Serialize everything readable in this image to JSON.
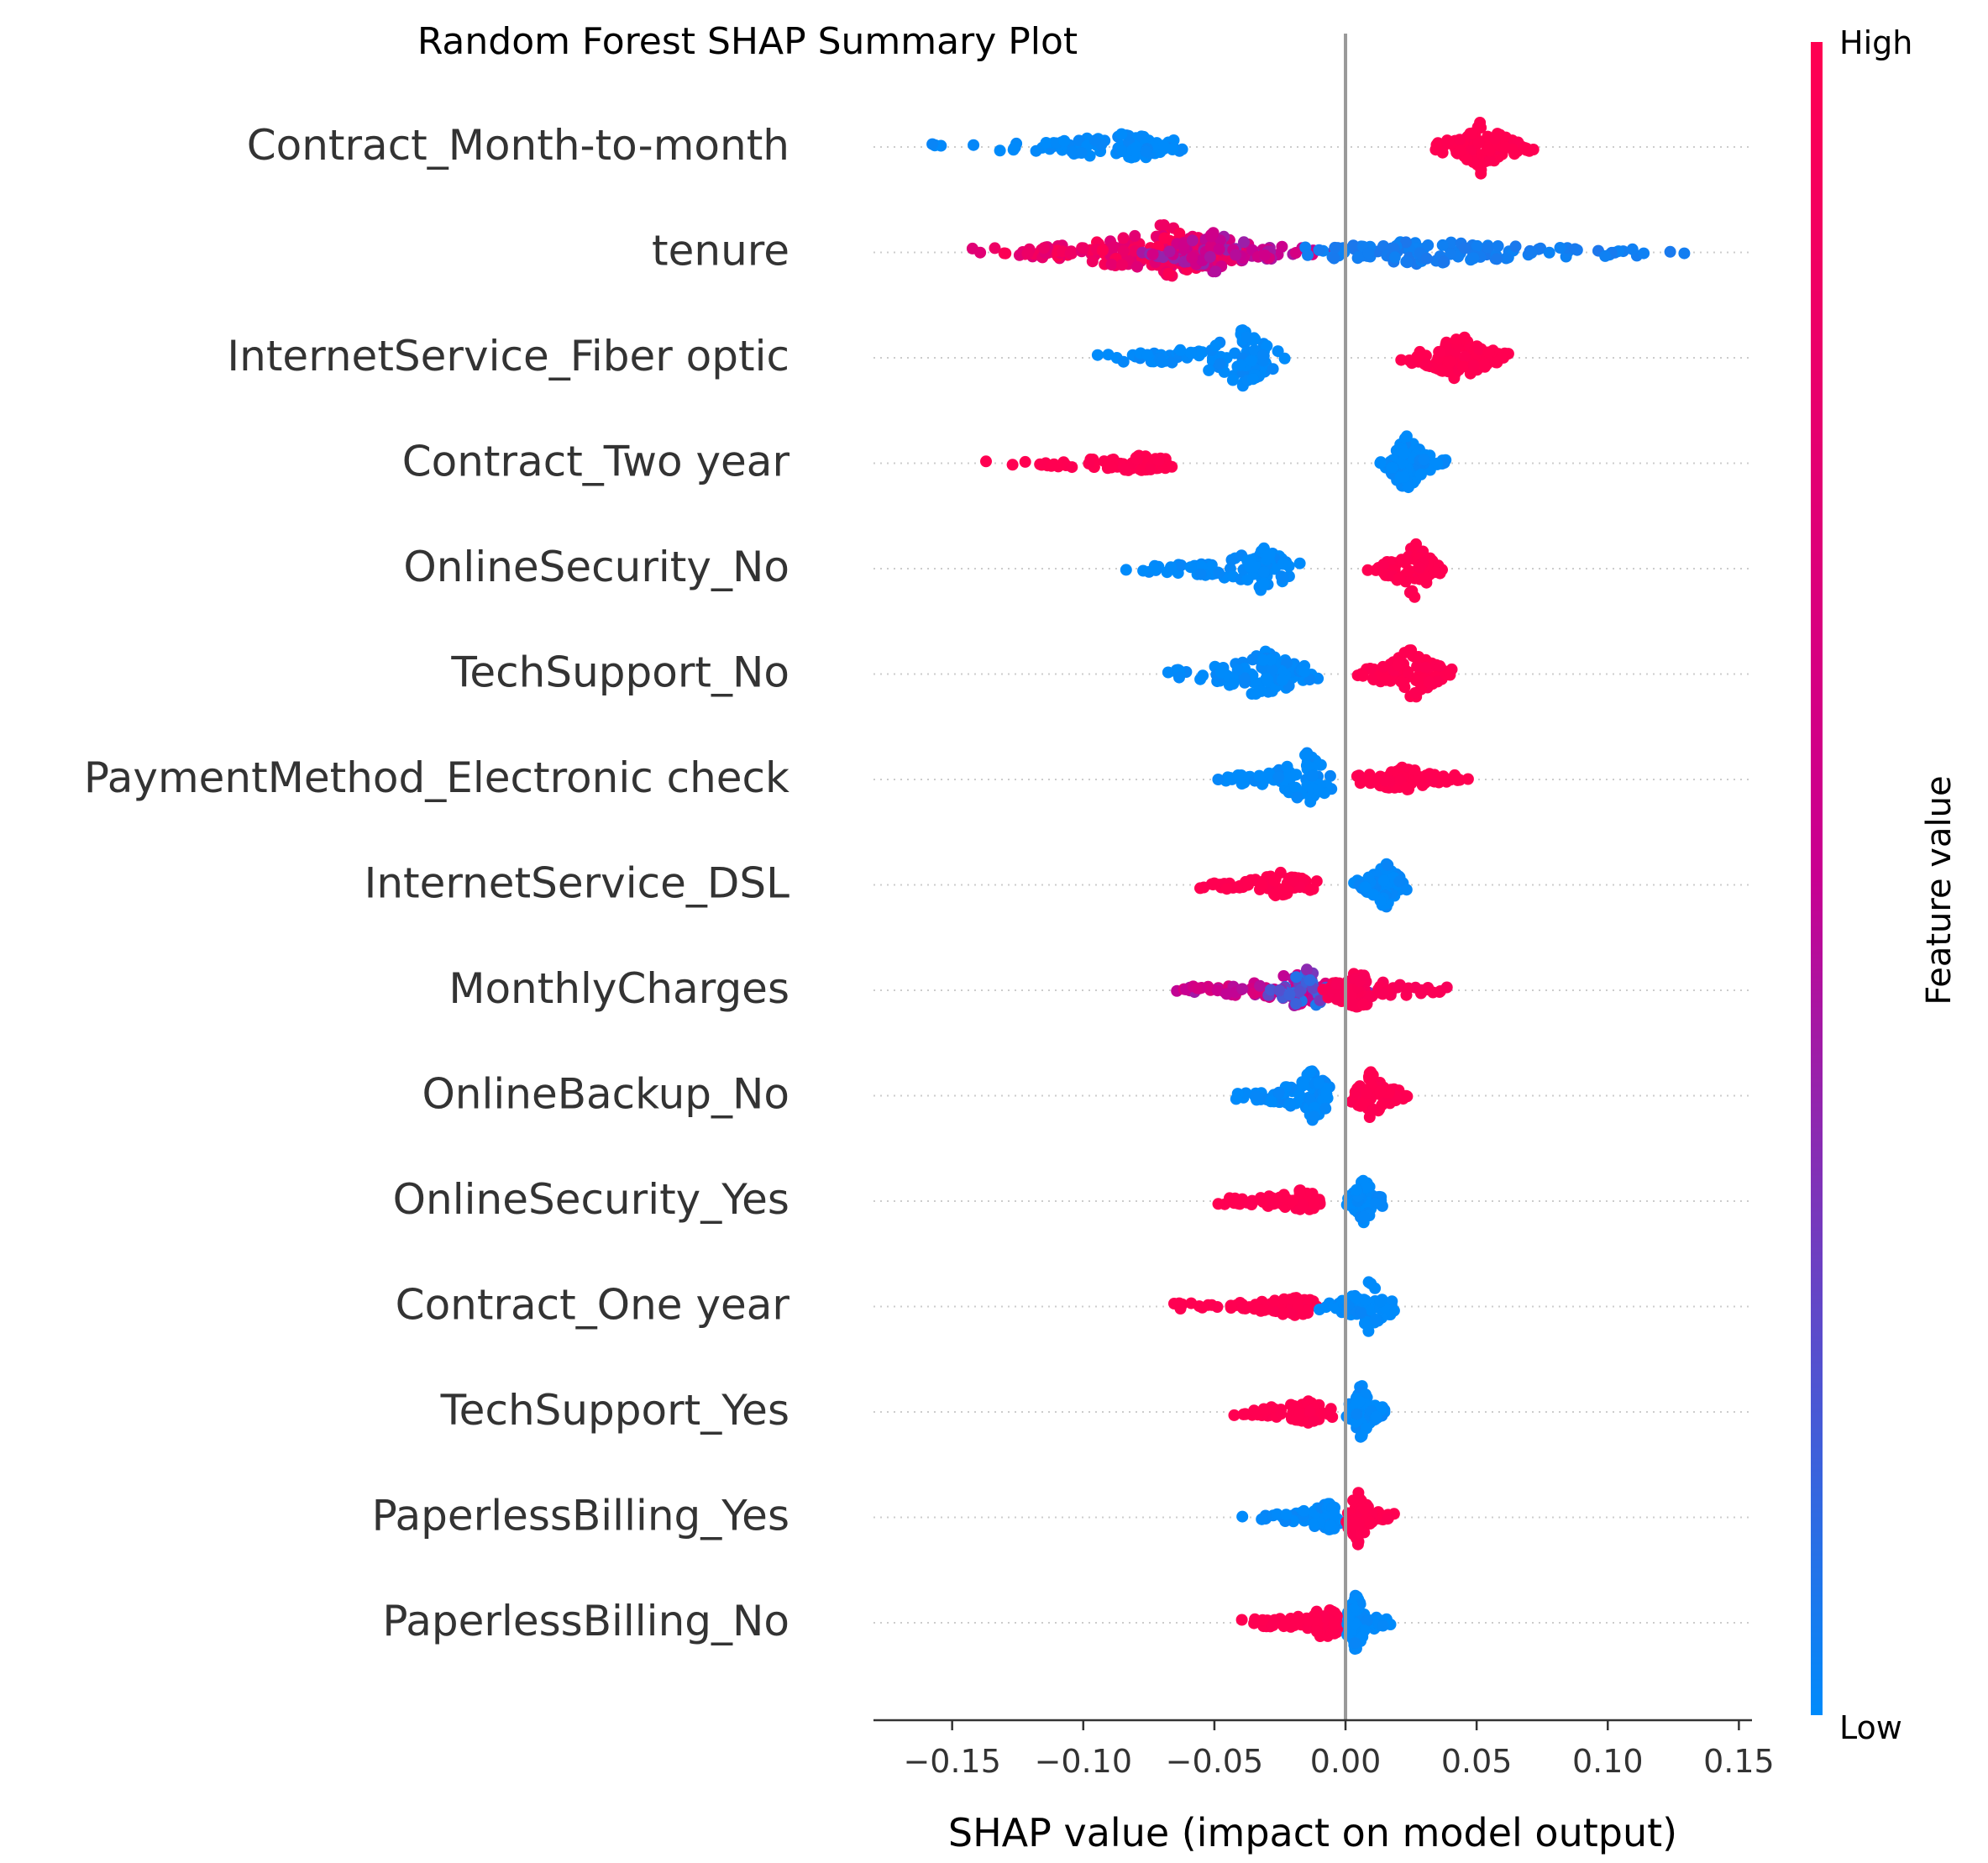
{
  "chart_data": {
    "type": "scatter",
    "subtype": "shap-beeswarm",
    "title": "Random Forest SHAP Summary Plot",
    "xlabel": "SHAP value (impact on model output)",
    "xlim": [
      -0.18,
      0.155
    ],
    "xticks": [
      -0.15,
      -0.1,
      -0.05,
      0.0,
      0.05,
      0.1,
      0.15
    ],
    "xtick_labels": [
      "−0.15",
      "−0.10",
      "−0.05",
      "0.00",
      "0.05",
      "0.10",
      "0.15"
    ],
    "colorbar": {
      "label": "Feature value",
      "high_label": "High",
      "low_label": "Low",
      "low_color": "#008bfb",
      "high_color": "#ff0051"
    },
    "grid": "dotted row guides",
    "features": [
      {
        "name": "Contract_Month-to-month",
        "clusters": [
          {
            "from": -0.165,
            "to": -0.06,
            "peak": -0.085,
            "color": 0.0,
            "weight": 1.2,
            "spread": 0.35
          },
          {
            "from": 0.032,
            "to": 0.073,
            "peak": 0.052,
            "color": 1.0,
            "weight": 1.0,
            "spread": 0.75
          }
        ]
      },
      {
        "name": "tenure",
        "clusters": [
          {
            "from": -0.145,
            "to": -0.03,
            "peak": -0.07,
            "color": 0.85,
            "weight": 2.2,
            "spread": 0.8
          },
          {
            "from": -0.08,
            "to": 0.0,
            "peak": -0.05,
            "color": 0.5,
            "weight": 1.0,
            "spread": 0.5
          },
          {
            "from": -0.02,
            "to": 0.14,
            "peak": 0.03,
            "color": 0.05,
            "weight": 1.4,
            "spread": 0.3
          }
        ]
      },
      {
        "name": "InternetService_Fiber optic",
        "clusters": [
          {
            "from": -0.098,
            "to": -0.022,
            "peak": -0.04,
            "color": 0.0,
            "weight": 1.3,
            "spread": 0.8
          },
          {
            "from": 0.018,
            "to": 0.064,
            "peak": 0.043,
            "color": 1.0,
            "weight": 1.1,
            "spread": 0.7
          }
        ]
      },
      {
        "name": "Contract_Two year",
        "clusters": [
          {
            "from": -0.143,
            "to": -0.064,
            "peak": -0.08,
            "color": 1.0,
            "weight": 1.0,
            "spread": 0.15
          },
          {
            "from": 0.011,
            "to": 0.042,
            "peak": 0.023,
            "color": 0.0,
            "weight": 0.9,
            "spread": 0.85
          }
        ]
      },
      {
        "name": "OnlineSecurity_No",
        "clusters": [
          {
            "from": -0.087,
            "to": -0.016,
            "peak": -0.033,
            "color": 0.0,
            "weight": 1.0,
            "spread": 0.6
          },
          {
            "from": 0.007,
            "to": 0.039,
            "peak": 0.026,
            "color": 1.0,
            "weight": 1.0,
            "spread": 0.8
          }
        ]
      },
      {
        "name": "TechSupport_No",
        "clusters": [
          {
            "from": -0.078,
            "to": -0.008,
            "peak": -0.032,
            "color": 0.0,
            "weight": 1.0,
            "spread": 0.7
          },
          {
            "from": 0.003,
            "to": 0.042,
            "peak": 0.025,
            "color": 1.0,
            "weight": 1.0,
            "spread": 0.8
          }
        ]
      },
      {
        "name": "PaymentMethod_Electronic check",
        "clusters": [
          {
            "from": -0.05,
            "to": -0.005,
            "peak": -0.015,
            "color": 0.0,
            "weight": 1.0,
            "spread": 0.8
          },
          {
            "from": 0.0,
            "to": 0.051,
            "peak": 0.022,
            "color": 1.0,
            "weight": 0.9,
            "spread": 0.3
          }
        ]
      },
      {
        "name": "InternetService_DSL",
        "clusters": [
          {
            "from": -0.058,
            "to": -0.01,
            "peak": -0.025,
            "color": 1.0,
            "weight": 0.8,
            "spread": 0.3
          },
          {
            "from": 0.002,
            "to": 0.025,
            "peak": 0.015,
            "color": 0.0,
            "weight": 0.9,
            "spread": 0.7
          }
        ]
      },
      {
        "name": "MonthlyCharges",
        "clusters": [
          {
            "from": -0.072,
            "to": -0.005,
            "peak": -0.02,
            "color": 0.55,
            "weight": 1.1,
            "spread": 0.5
          },
          {
            "from": -0.03,
            "to": 0.01,
            "peak": -0.015,
            "color": 0.2,
            "weight": 0.6,
            "spread": 0.6
          },
          {
            "from": -0.01,
            "to": 0.043,
            "peak": 0.005,
            "color": 0.95,
            "weight": 1.0,
            "spread": 0.5
          }
        ]
      },
      {
        "name": "OnlineBackup_No",
        "clusters": [
          {
            "from": -0.046,
            "to": -0.005,
            "peak": -0.013,
            "color": 0.0,
            "weight": 1.0,
            "spread": 0.7
          },
          {
            "from": 0.0,
            "to": 0.026,
            "peak": 0.01,
            "color": 1.0,
            "weight": 0.9,
            "spread": 0.7
          }
        ]
      },
      {
        "name": "OnlineSecurity_Yes",
        "clusters": [
          {
            "from": -0.058,
            "to": -0.008,
            "peak": -0.018,
            "color": 1.0,
            "weight": 0.9,
            "spread": 0.25
          },
          {
            "from": 0.0,
            "to": 0.017,
            "peak": 0.007,
            "color": 0.0,
            "weight": 0.8,
            "spread": 0.7
          }
        ]
      },
      {
        "name": "Contract_One year",
        "clusters": [
          {
            "from": -0.073,
            "to": -0.01,
            "peak": -0.02,
            "color": 1.0,
            "weight": 1.0,
            "spread": 0.2
          },
          {
            "from": -0.012,
            "to": 0.02,
            "peak": 0.009,
            "color": 0.0,
            "weight": 0.8,
            "spread": 0.7
          }
        ]
      },
      {
        "name": "TechSupport_Yes",
        "clusters": [
          {
            "from": -0.051,
            "to": -0.003,
            "peak": -0.015,
            "color": 1.0,
            "weight": 0.9,
            "spread": 0.25
          },
          {
            "from": 0.0,
            "to": 0.017,
            "peak": 0.006,
            "color": 0.0,
            "weight": 0.9,
            "spread": 0.8
          }
        ]
      },
      {
        "name": "PaperlessBilling_Yes",
        "clusters": [
          {
            "from": -0.042,
            "to": -0.002,
            "peak": -0.007,
            "color": 0.0,
            "weight": 0.8,
            "spread": 0.35
          },
          {
            "from": 0.0,
            "to": 0.019,
            "peak": 0.005,
            "color": 1.0,
            "weight": 0.8,
            "spread": 0.8
          }
        ]
      },
      {
        "name": "PaperlessBilling_No",
        "clusters": [
          {
            "from": -0.04,
            "to": -0.002,
            "peak": -0.008,
            "color": 1.0,
            "weight": 0.8,
            "spread": 0.4
          },
          {
            "from": 0.0,
            "to": 0.019,
            "peak": 0.004,
            "color": 0.0,
            "weight": 0.8,
            "spread": 0.8
          }
        ]
      }
    ]
  }
}
